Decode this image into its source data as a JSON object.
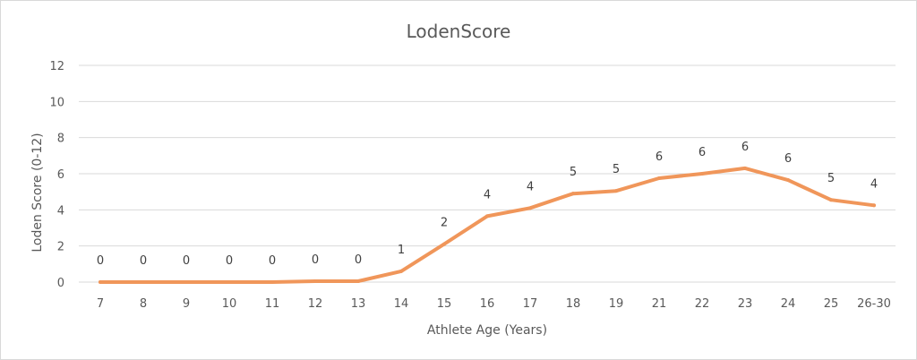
{
  "chart_data": {
    "type": "line",
    "title": "LodenScore",
    "xlabel": "Athlete Age (Years)",
    "ylabel": "Loden  Score (0-12)",
    "categories": [
      "7",
      "8",
      "9",
      "10",
      "11",
      "12",
      "13",
      "14",
      "15",
      "16",
      "17",
      "18",
      "19",
      "21",
      "22",
      "23",
      "24",
      "25",
      "26-30"
    ],
    "series": [
      {
        "values": [
          0,
          0,
          0,
          0,
          0,
          0.05,
          0.05,
          0.6,
          2.1,
          3.65,
          4.1,
          4.9,
          5.05,
          5.75,
          6.0,
          6.3,
          5.65,
          4.55,
          4.25
        ],
        "labels": [
          "0",
          "0",
          "0",
          "0",
          "0",
          "0",
          "0",
          "1",
          "2",
          "4",
          "4",
          "5",
          "5",
          "6",
          "6",
          "6",
          "6",
          "5",
          "4"
        ],
        "color": "#F0965A"
      }
    ],
    "ylim": [
      0,
      12
    ],
    "yticks": [
      "0",
      "2",
      "4",
      "6",
      "8",
      "10",
      "12"
    ],
    "grid": true,
    "legend": "none"
  }
}
